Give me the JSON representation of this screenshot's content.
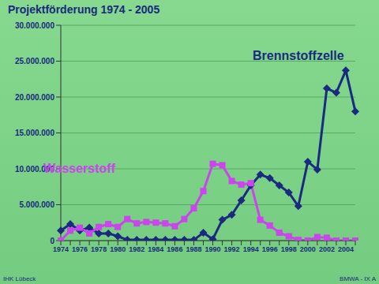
{
  "chart_data": {
    "type": "line",
    "title": "Projektförderung 1974 - 2005",
    "categories": [
      "1974",
      null,
      "1976",
      null,
      "1978",
      null,
      "1980",
      null,
      "1982",
      null,
      "1984",
      null,
      "1986",
      null,
      "1988",
      null,
      "1990",
      null,
      "1992",
      null,
      "1994",
      null,
      "1996",
      null,
      "1998",
      null,
      "2000",
      null,
      "2002",
      null,
      "2004",
      null
    ],
    "series": [
      {
        "name": "Brennstoffzelle",
        "color": "#1a2a80",
        "marker": "diamond",
        "values": [
          1400000,
          2300000,
          1400000,
          1800000,
          1000000,
          1000000,
          600000,
          100000,
          100000,
          100000,
          100000,
          100000,
          100000,
          100000,
          100000,
          1100000,
          200000,
          2900000,
          3600000,
          5600000,
          7700000,
          9200000,
          8700000,
          7700000,
          6700000,
          4800000,
          11000000,
          9900000,
          21200000,
          20600000,
          23700000,
          18000000
        ]
      },
      {
        "name": "Wasserstoff",
        "color": "#cc44ee",
        "marker": "square",
        "values": [
          0,
          1400000,
          1800000,
          1000000,
          1900000,
          2300000,
          1900000,
          3000000,
          2400000,
          2600000,
          2500000,
          2400000,
          2000000,
          3000000,
          4500000,
          6900000,
          10700000,
          10500000,
          8300000,
          7800000,
          8000000,
          2900000,
          2100000,
          1100000,
          600000,
          100000,
          0,
          500000,
          400000,
          0,
          0,
          0
        ]
      }
    ],
    "ylim": [
      0,
      30000000
    ],
    "yticks": [
      0,
      {
        "value": 5000000,
        "label": "5.000.000"
      },
      {
        "value": 10000000,
        "label": "10.000.000"
      },
      {
        "value": 15000000,
        "label": "15.000.000"
      },
      {
        "value": 20000000,
        "label": "20.000.000"
      },
      {
        "value": 25000000,
        "label": "25.000.000"
      },
      {
        "value": 30000000,
        "label": "30.000.000"
      }
    ],
    "grid": true,
    "annotations": [
      "IHK Lübeck",
      "BMWA - IX A"
    ]
  }
}
